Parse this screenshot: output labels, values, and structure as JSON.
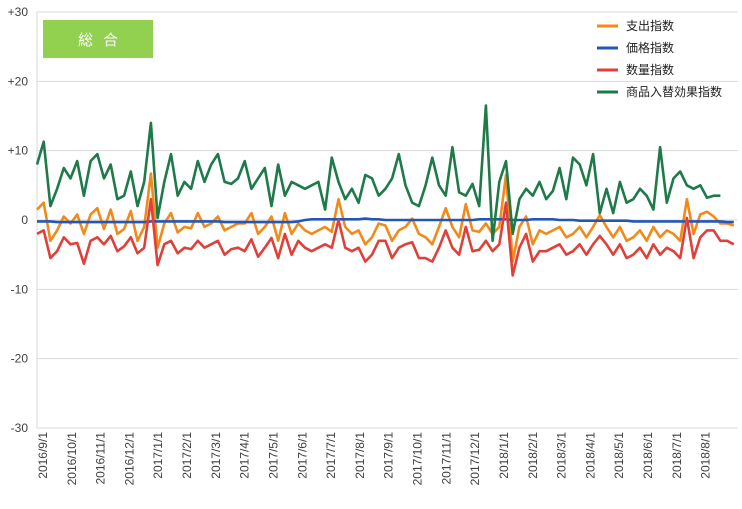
{
  "chart_data": {
    "type": "line",
    "title": "",
    "badge": "総合",
    "xlabel": "",
    "ylabel": "",
    "ylim": [
      -30,
      30
    ],
    "ytick_values": [
      30,
      20,
      10,
      0,
      -10,
      -20,
      -30
    ],
    "ytick_labels": [
      "+30",
      "+20",
      "+10",
      "0",
      "-10",
      "-20",
      "-30"
    ],
    "grid": "horizontal",
    "legend": "top-right",
    "x_tick_labels": [
      "2016/9/1",
      "2016/10/1",
      "2016/11/1",
      "2016/12/1",
      "2017/1/1",
      "2017/2/1",
      "2017/3/1",
      "2017/4/1",
      "2017/5/1",
      "2017/6/1",
      "2017/7/1",
      "2017/8/1",
      "2017/9/1",
      "2017/10/1",
      "2017/11/1",
      "2017/12/1",
      "2018/1/1",
      "2018/2/1",
      "2018/3/1",
      "2018/4/1",
      "2018/5/1",
      "2018/6/1",
      "2018/7/1",
      "2018/8/1"
    ],
    "weeks_per_month": 4.3,
    "series": [
      {
        "name": "支出指数",
        "color": "#f28a1a",
        "values": [
          1.5,
          2.5,
          -3,
          -1.5,
          0.5,
          -0.5,
          0.8,
          -2,
          0.8,
          1.7,
          -1.3,
          1.5,
          -2,
          -1.3,
          1.3,
          -3,
          -1,
          6.7,
          -4,
          -0.5,
          1,
          -1.8,
          -1,
          -1.2,
          1,
          -1,
          -0.5,
          0.5,
          -1.5,
          -1,
          -0.5,
          -0.5,
          1,
          -2,
          -1,
          0.5,
          -3,
          1,
          -2,
          -0.5,
          -1.5,
          -2,
          -1.5,
          -1,
          -1.7,
          3,
          -1,
          -2,
          -1.5,
          -3.5,
          -2.5,
          -0.5,
          -0.8,
          -3,
          -1.5,
          -1,
          0.2,
          -2,
          -2.5,
          -3.5,
          -1,
          1.7,
          -1,
          -2.5,
          2.3,
          -1.5,
          -1.7,
          -0.5,
          -2,
          -1,
          6.5,
          -6,
          -1,
          0.5,
          -3.5,
          -1.5,
          -2,
          -1.5,
          -1,
          -2.5,
          -2,
          -1,
          -2.5,
          -1,
          0.7,
          -1,
          -2.5,
          -1,
          -3,
          -2.5,
          -1.5,
          -3,
          -1,
          -2.5,
          -1.5,
          -2,
          -3,
          3,
          -2,
          0.8,
          1.2,
          0.5,
          -0.5,
          -0.5,
          -0.8
        ]
      },
      {
        "name": "価格指数",
        "color": "#2456b8",
        "values": [
          -0.2,
          -0.2,
          -0.2,
          -0.3,
          -0.3,
          -0.3,
          -0.3,
          -0.3,
          -0.3,
          -0.3,
          -0.3,
          -0.3,
          -0.3,
          -0.3,
          -0.3,
          -0.3,
          -0.3,
          -0.2,
          -0.2,
          -0.2,
          -0.2,
          -0.2,
          -0.2,
          -0.2,
          -0.2,
          -0.2,
          -0.2,
          -0.2,
          -0.3,
          -0.3,
          -0.3,
          -0.3,
          -0.3,
          -0.3,
          -0.3,
          -0.3,
          -0.3,
          -0.3,
          -0.3,
          -0.2,
          0,
          0.1,
          0.1,
          0.1,
          0.1,
          0.1,
          0.1,
          0.1,
          0.1,
          0.2,
          0.1,
          0.1,
          0,
          0,
          0,
          0,
          0,
          0,
          0,
          0,
          0,
          0,
          0,
          0,
          0,
          0,
          0.1,
          0.1,
          0.1,
          0.1,
          0.1,
          0,
          0,
          0,
          0.1,
          0.1,
          0.1,
          0.1,
          0,
          0,
          0,
          -0.1,
          -0.1,
          -0.1,
          -0.1,
          -0.1,
          -0.1,
          -0.1,
          -0.1,
          -0.2,
          -0.2,
          -0.2,
          -0.2,
          -0.2,
          -0.2,
          -0.2,
          -0.2,
          -0.2,
          -0.2,
          -0.2,
          -0.2,
          -0.2,
          -0.2,
          -0.3,
          -0.3
        ]
      },
      {
        "name": "数量指数",
        "color": "#e0403a",
        "values": [
          -2,
          -1.5,
          -5.5,
          -4.5,
          -2.5,
          -3.5,
          -3.3,
          -6.3,
          -3,
          -2.5,
          -3.5,
          -2.3,
          -4.5,
          -3.8,
          -2.5,
          -4.8,
          -4,
          3,
          -6.5,
          -3.5,
          -3,
          -4.8,
          -4,
          -4.2,
          -3,
          -4,
          -3.5,
          -3,
          -5,
          -4.2,
          -4,
          -4.5,
          -2.8,
          -5.3,
          -4,
          -2.6,
          -5.5,
          -2,
          -5,
          -3,
          -4,
          -4.5,
          -4,
          -3.5,
          -4,
          0,
          -4,
          -4.5,
          -4,
          -6,
          -5,
          -3,
          -3,
          -5.5,
          -4,
          -3.5,
          -3.2,
          -5.5,
          -5.5,
          -6,
          -4,
          -1.5,
          -4,
          -5,
          -1,
          -4.5,
          -4.3,
          -3,
          -4.5,
          -3.5,
          2.5,
          -8,
          -4,
          -2,
          -6,
          -4.5,
          -4.5,
          -4,
          -3.5,
          -5,
          -4.5,
          -3.5,
          -5,
          -3.5,
          -2.3,
          -3.5,
          -5,
          -3.5,
          -5.5,
          -5,
          -4,
          -5.5,
          -3.5,
          -5,
          -4,
          -4.5,
          -5.5,
          0.3,
          -5.5,
          -2.5,
          -1.5,
          -1.5,
          -3,
          -3,
          -3.5
        ]
      },
      {
        "name": "商品入替効果指数",
        "color": "#1f7a4a",
        "values": [
          8,
          11.3,
          2,
          4.5,
          7.5,
          6,
          8.5,
          3.5,
          8.5,
          9.5,
          6,
          8,
          3,
          3.5,
          7,
          2,
          5.5,
          14,
          0.3,
          5.5,
          9.5,
          3.5,
          5.5,
          4.5,
          8.5,
          5.5,
          8,
          9.5,
          5.5,
          5.2,
          6,
          8.5,
          4.5,
          6,
          7.5,
          2,
          8,
          3.5,
          5.5,
          5,
          4.5,
          5,
          5.5,
          1.5,
          9,
          5.5,
          3,
          4.5,
          2.5,
          6.5,
          6,
          3.5,
          4.5,
          6,
          9.5,
          5,
          2.5,
          2,
          5,
          9,
          5,
          3.5,
          10.5,
          4,
          3.5,
          5.2,
          2,
          16.5,
          -3,
          5.5,
          8.5,
          -2,
          3,
          4.5,
          3.5,
          5.5,
          3,
          4.2,
          7.5,
          3,
          9,
          8,
          5,
          9.5,
          1,
          4.5,
          1,
          5.5,
          2.5,
          3,
          4.5,
          3.5,
          1.5,
          10.5,
          2.5,
          6,
          7,
          5,
          4.5,
          5,
          3.2,
          3.5,
          3.5
        ]
      }
    ]
  }
}
